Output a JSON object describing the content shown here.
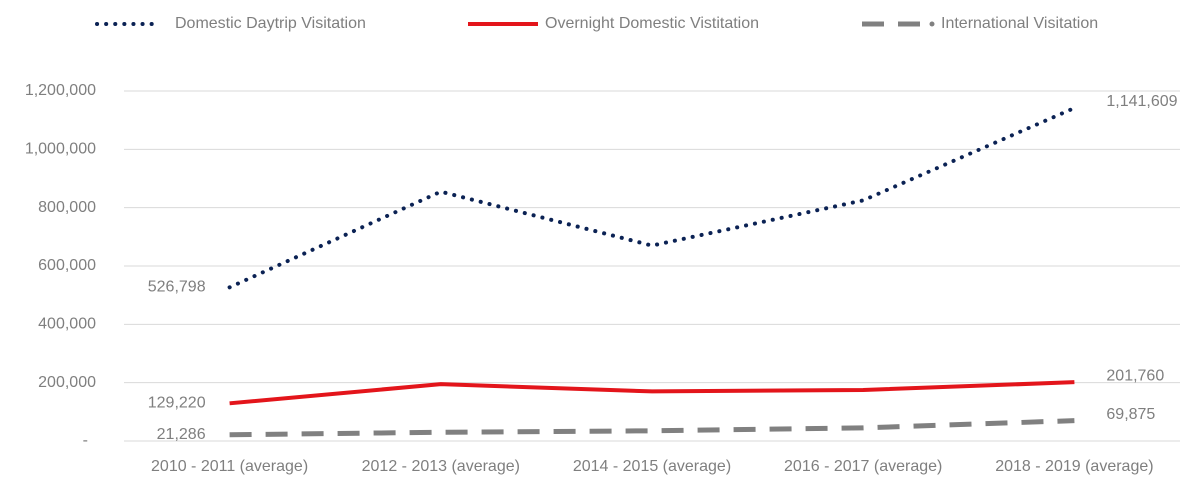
{
  "chart_data": {
    "type": "line",
    "categories": [
      "2010 - 2011 (average)",
      "2012 - 2013 (average)",
      "2014 - 2015 (average)",
      "2016 - 2017 (average)",
      "2018 - 2019 (average)"
    ],
    "series": [
      {
        "name": "Domestic Daytrip Visitation",
        "color": "#0b2254",
        "line_style": "dotted",
        "values": [
          526798,
          855000,
          670000,
          825000,
          1141609
        ],
        "value_labels": [
          "526,798",
          null,
          null,
          null,
          "1,141,609"
        ]
      },
      {
        "name": "Overnight Domestic Vistitation",
        "color": "#e3151b",
        "line_style": "solid",
        "values": [
          129220,
          195000,
          170000,
          175000,
          201760
        ],
        "value_labels": [
          "129,220",
          null,
          null,
          null,
          "201,760"
        ]
      },
      {
        "name": "International Visitation",
        "color": "#808080",
        "line_style": "dashed",
        "values": [
          21286,
          30000,
          35000,
          45000,
          69875
        ],
        "value_labels": [
          "21,286",
          null,
          null,
          null,
          "69,875"
        ]
      }
    ],
    "ylim": [
      0,
      1200000
    ],
    "yticks": [
      {
        "value": 0,
        "label": "-"
      },
      {
        "value": 200000,
        "label": "200,000"
      },
      {
        "value": 400000,
        "label": "400,000"
      },
      {
        "value": 600000,
        "label": "600,000"
      },
      {
        "value": 800000,
        "label": "800,000"
      },
      {
        "value": 1000000,
        "label": "1,000,000"
      },
      {
        "value": 1200000,
        "label": "1,200,000"
      }
    ],
    "grid": true,
    "legend": "top"
  }
}
